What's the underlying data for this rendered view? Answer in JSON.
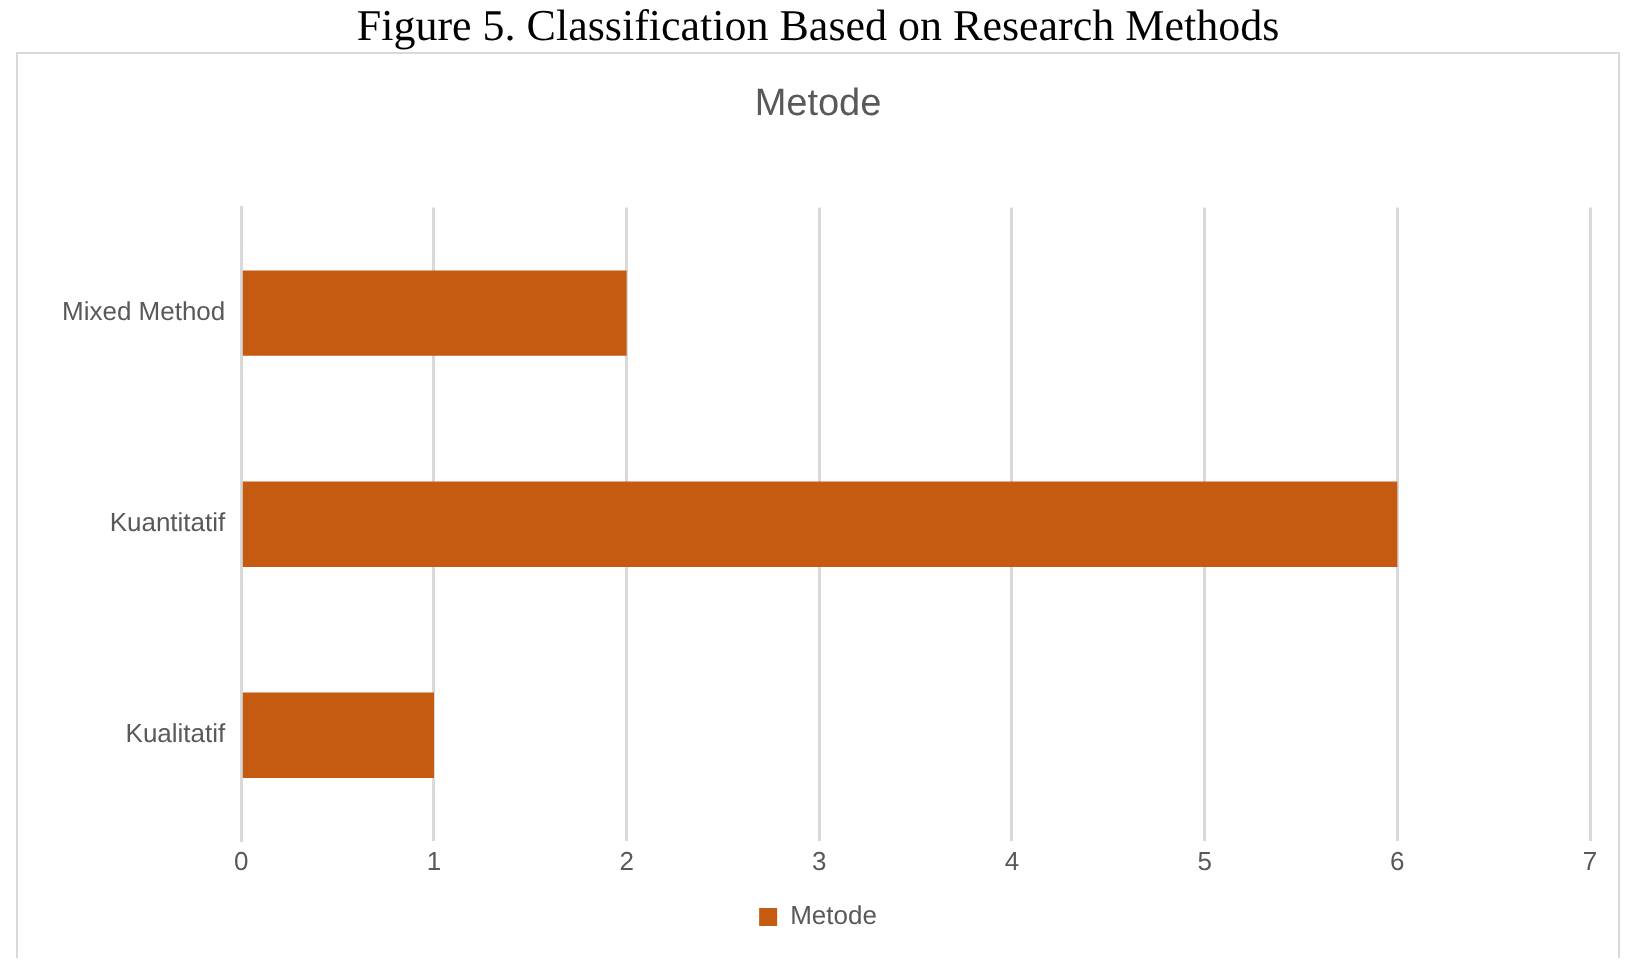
{
  "chart_data": {
    "type": "bar",
    "orientation": "horizontal",
    "title": "Metode",
    "annotations": [
      "Figure 5. Classification Based on Research Methods"
    ],
    "categories": [
      "Mixed Method",
      "Kuantitatif",
      "Kualitatif"
    ],
    "series": [
      {
        "name": "Metode",
        "color": "#c55a11",
        "values": [
          2,
          6,
          1
        ]
      }
    ],
    "xlim": [
      0,
      7
    ],
    "xticks": [
      0,
      1,
      2,
      3,
      4,
      5,
      6,
      7
    ],
    "grid": "x",
    "legend": "bottom"
  }
}
